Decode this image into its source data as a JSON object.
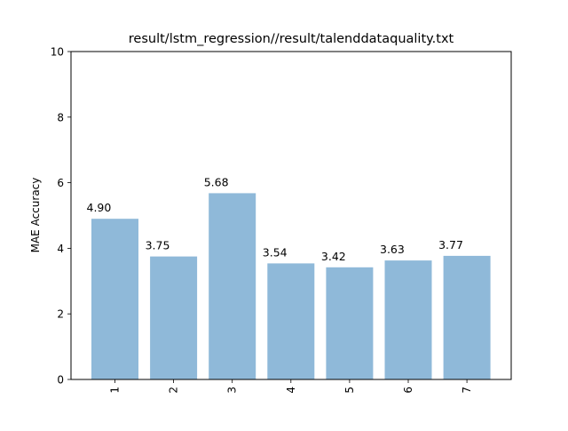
{
  "chart_data": {
    "type": "bar",
    "title": "result/lstm_regression//result/talenddataquality.txt",
    "xlabel": "",
    "ylabel": "MAE Accuracy",
    "ylim": [
      0,
      10
    ],
    "yticks": [
      "0",
      "2",
      "4",
      "6",
      "8",
      "10"
    ],
    "categories": [
      "1",
      "2",
      "3",
      "4",
      "5",
      "6",
      "7"
    ],
    "values": [
      4.9,
      3.75,
      5.68,
      3.54,
      3.42,
      3.63,
      3.77
    ],
    "value_labels": [
      "4.90",
      "3.75",
      "5.68",
      "3.54",
      "3.42",
      "3.63",
      "3.77"
    ],
    "bar_color": "#8fb9d9",
    "grid": false,
    "legend": "none"
  }
}
